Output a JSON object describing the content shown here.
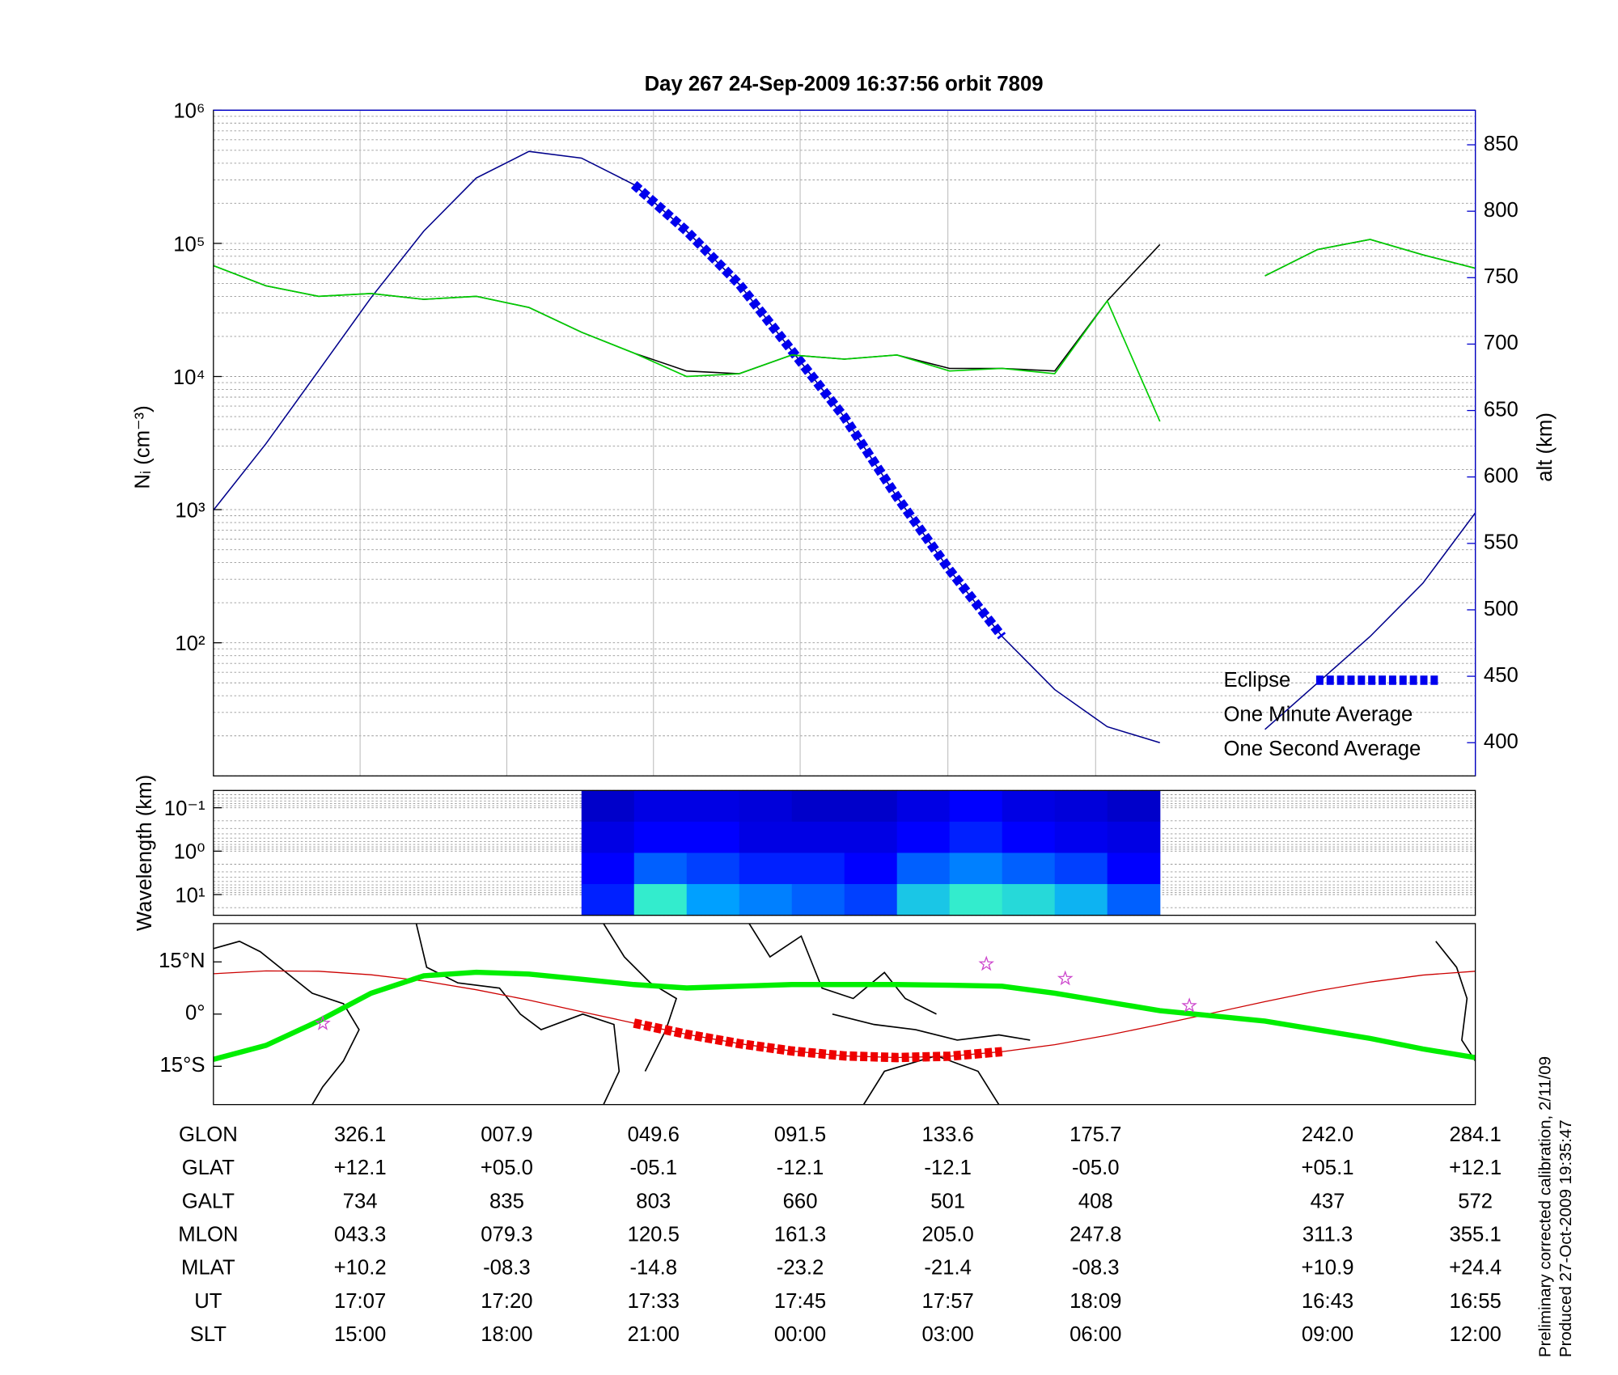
{
  "chart_data": [
    {
      "type": "line",
      "title": "Day 267  24-Sep-2009 16:37:56   orbit 7809",
      "ylabel": "Nᵢ (cm⁻³)",
      "y2label": "alt (km)",
      "ylog": true,
      "ylim": [
        10,
        1000000
      ],
      "yticks": [
        {
          "value": 100,
          "label": "10²"
        },
        {
          "value": 1000,
          "label": "10³"
        },
        {
          "value": 10000,
          "label": "10⁴"
        },
        {
          "value": 100000,
          "label": "10⁵"
        },
        {
          "value": 1000000,
          "label": "10⁶"
        }
      ],
      "y2lim": [
        375,
        876
      ],
      "y2ticks": [
        400,
        450,
        500,
        550,
        600,
        650,
        700,
        750,
        800,
        850
      ],
      "xlim": [
        0,
        24
      ],
      "grid": true,
      "legend": "lower right",
      "series": [
        {
          "axis": "y2",
          "color": "#00008b",
          "values": [
            575,
            625,
            680,
            735,
            785,
            825,
            845,
            840,
            820,
            785,
            745,
            695,
            645,
            585,
            530,
            480,
            440,
            412,
            400,
            null,
            410,
            445,
            480,
            520,
            573
          ]
        },
        {
          "name": "One Minute Average",
          "color": "#000000",
          "values": [
            68000,
            48000,
            40000,
            42000,
            38000,
            40000,
            33000,
            21500,
            15000,
            11000,
            10500,
            14500,
            13500,
            14500,
            11500,
            11500,
            11000,
            37000,
            98000,
            null,
            57000,
            90000,
            107000,
            82000,
            65000
          ]
        },
        {
          "name": "One Second Average",
          "color": "#00cc00",
          "values": [
            68000,
            48000,
            40000,
            42000,
            38000,
            40000,
            33000,
            21500,
            15000,
            10000,
            10500,
            14500,
            13500,
            14500,
            11000,
            11500,
            10500,
            37000,
            4600,
            null,
            57000,
            90000,
            107000,
            82000,
            65000
          ]
        },
        {
          "name": "Eclipse",
          "axis": "y2",
          "color": "#0000ee",
          "style": "dashed-thick",
          "values": [
            null,
            null,
            null,
            null,
            null,
            null,
            null,
            null,
            820,
            785,
            745,
            695,
            645,
            585,
            530,
            480,
            null,
            null,
            null,
            null,
            null,
            null,
            null,
            null,
            null
          ]
        }
      ]
    },
    {
      "type": "heatmap",
      "ylabel": "Wavelength (km)",
      "ylog": true,
      "ylim": [
        30,
        0.04
      ],
      "yticks": [
        {
          "value": 0.1,
          "label": "10⁻¹"
        },
        {
          "value": 1,
          "label": "10⁰"
        },
        {
          "value": 10,
          "label": "10¹"
        }
      ],
      "xlim": [
        0,
        24
      ],
      "values": [
        [
          null,
          null,
          null,
          null,
          null,
          null,
          null,
          0.15,
          0.2,
          0.2,
          0.18,
          0.15,
          0.15,
          0.2,
          0.25,
          0.2,
          0.18,
          0.15,
          null,
          null,
          null,
          null,
          null,
          null
        ],
        [
          null,
          null,
          null,
          null,
          null,
          null,
          null,
          0.2,
          0.25,
          0.25,
          0.2,
          0.2,
          0.2,
          0.25,
          0.3,
          0.25,
          0.22,
          0.2,
          null,
          null,
          null,
          null,
          null,
          null
        ],
        [
          null,
          null,
          null,
          null,
          null,
          null,
          null,
          0.25,
          0.4,
          0.35,
          0.3,
          0.3,
          0.25,
          0.4,
          0.45,
          0.4,
          0.35,
          0.25,
          null,
          null,
          null,
          null,
          null,
          null
        ],
        [
          null,
          null,
          null,
          null,
          null,
          null,
          null,
          0.3,
          0.7,
          0.5,
          0.45,
          0.4,
          0.35,
          0.6,
          0.7,
          0.65,
          0.55,
          0.4,
          null,
          null,
          null,
          null,
          null,
          null
        ]
      ]
    },
    {
      "type": "map",
      "ylim": [
        -26,
        26
      ],
      "yticks": [
        {
          "value": 15,
          "label": "15°N"
        },
        {
          "value": 0,
          "label": "0°"
        },
        {
          "value": -15,
          "label": "15°S"
        }
      ],
      "xlim": [
        0,
        24
      ],
      "series": [
        {
          "color": "#cc0000",
          "values": [
            11.6,
            12.4,
            12.3,
            11.3,
            9.5,
            7.0,
            4.0,
            0.7,
            -2.6,
            -5.8,
            -8.5,
            -10.6,
            -12.0,
            -12.5,
            -12.1,
            -10.8,
            -8.8,
            -6.1,
            -3.0,
            0.3,
            3.6,
            6.7,
            9.2,
            11.2,
            12.3
          ]
        },
        {
          "color": "#00ee00",
          "style": "thick",
          "values": [
            -13,
            -9,
            -2,
            6,
            11,
            12,
            11.5,
            10,
            8.5,
            7.5,
            8,
            8.5,
            8.5,
            8.5,
            8.3,
            8,
            6,
            3.5,
            1,
            -0.5,
            -2,
            -4.5,
            -7,
            -10,
            -12.5
          ]
        },
        {
          "color": "#ee0000",
          "style": "dashed-thick",
          "values": [
            null,
            null,
            null,
            null,
            null,
            null,
            null,
            null,
            -2.6,
            -5.8,
            -8.5,
            -10.6,
            -12.0,
            -12.5,
            -12.1,
            -10.8,
            null,
            null,
            null,
            null,
            null,
            null,
            null,
            null,
            null
          ]
        }
      ],
      "stars": {
        "color": "#cc44cc",
        "x": [
          2.08,
          14.7,
          16.2,
          18.56
        ],
        "values": [
          -2.7,
          14.4,
          10.2,
          2.4
        ]
      }
    }
  ],
  "table": {
    "rows": [
      {
        "label": "GLON",
        "values": [
          "326.1",
          "007.9",
          "049.6",
          "091.5",
          "133.6",
          "175.7",
          "242.0",
          "284.1"
        ]
      },
      {
        "label": "GLAT",
        "values": [
          "+12.1",
          "+05.0",
          "-05.1",
          "-12.1",
          "-12.1",
          "-05.0",
          "+05.1",
          "+12.1"
        ]
      },
      {
        "label": "GALT",
        "values": [
          "734",
          "835",
          "803",
          "660",
          "501",
          "408",
          "437",
          "572"
        ]
      },
      {
        "label": "MLON",
        "values": [
          "043.3",
          "079.3",
          "120.5",
          "161.3",
          "205.0",
          "247.8",
          "311.3",
          "355.1"
        ]
      },
      {
        "label": "MLAT",
        "values": [
          "+10.2",
          "-08.3",
          "-14.8",
          "-23.2",
          "-21.4",
          "-08.3",
          "+10.9",
          "+24.4"
        ]
      },
      {
        "label": "UT",
        "values": [
          "17:07",
          "17:20",
          "17:33",
          "17:45",
          "17:57",
          "18:09",
          "16:43",
          "16:55"
        ]
      },
      {
        "label": "SLT",
        "values": [
          "15:00",
          "18:00",
          "21:00",
          "00:00",
          "03:00",
          "06:00",
          "09:00",
          "12:00"
        ]
      }
    ]
  },
  "notes": [
    "Preliminary corrected calibration, 2/11/09",
    "Produced 27-Oct-2009 19:35:47"
  ]
}
